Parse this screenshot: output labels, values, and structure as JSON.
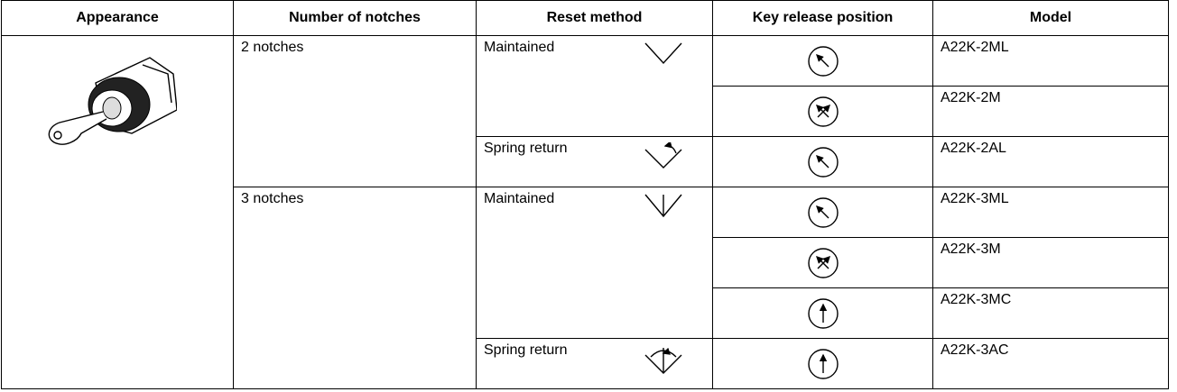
{
  "table": {
    "headers": [
      "Appearance",
      "Number of notches",
      "Reset method",
      "Key release position",
      "Model"
    ],
    "groups": [
      {
        "notches": "2 notches",
        "resets": [
          {
            "method": "Maintained",
            "models": [
              "A22K-2ML",
              "A22K-2M"
            ]
          },
          {
            "method": "Spring return",
            "models": [
              "A22K-2AL"
            ]
          }
        ]
      },
      {
        "notches": "3 notches",
        "resets": [
          {
            "method": "Maintained",
            "models": [
              "A22K-3ML",
              "A22K-3M",
              "A22K-3MC"
            ]
          },
          {
            "method": "Spring return",
            "models": [
              "A22K-3AC"
            ]
          }
        ]
      }
    ]
  }
}
